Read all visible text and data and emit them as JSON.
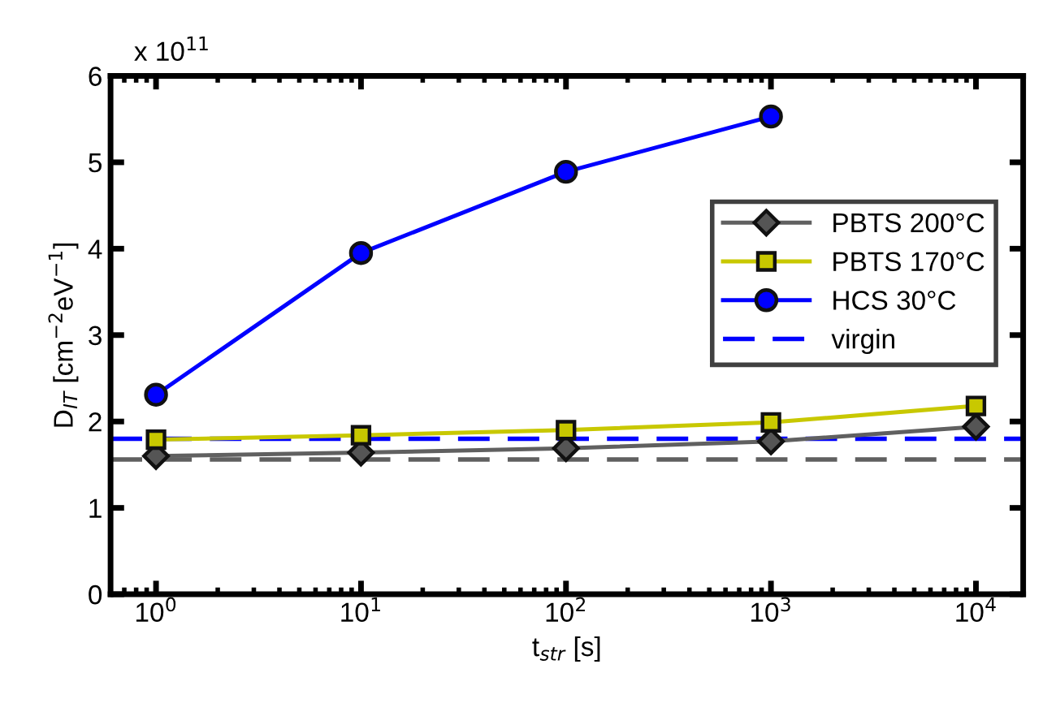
{
  "chart_data": {
    "type": "line",
    "xlabel": "t$_{str}$ [s]",
    "ylabel": "D$_{IT}$ [cm$^{−2}$eV$^{−1}$]",
    "annotations": [
      "x 10$^{11}$"
    ],
    "log": "x",
    "xlim": [
      0.6,
      17000
    ],
    "xticks": [
      {
        "value": 1,
        "label": "10$^{0}$"
      },
      {
        "value": 10,
        "label": "10$^{1}$"
      },
      {
        "value": 100,
        "label": "10$^{2}$"
      },
      {
        "value": 1000,
        "label": "10$^{3}$"
      },
      {
        "value": 10000,
        "label": "10$^{4}$"
      }
    ],
    "ylim": [
      0,
      6
    ],
    "yticks": [
      0,
      1,
      2,
      3,
      4,
      5,
      6
    ],
    "x": [
      1,
      10,
      100,
      1000,
      10000
    ],
    "series": [
      {
        "name": "PBTS 200°C",
        "color": "#606060",
        "marker": "diamond",
        "values": [
          1.6,
          1.64,
          1.69,
          1.77,
          1.94
        ]
      },
      {
        "name": "PBTS 170°C",
        "color": "#c8c800",
        "marker": "square",
        "values": [
          1.79,
          1.84,
          1.9,
          1.99,
          2.18
        ]
      },
      {
        "name": "HCS 30°C",
        "color": "#0000ff",
        "marker": "circle",
        "values": [
          2.31,
          3.95,
          4.89,
          5.53,
          null
        ]
      }
    ],
    "ref_lines": [
      {
        "axis": "y",
        "value": 1.8,
        "label": "virgin",
        "color": "#0000ff",
        "line_style": "dashed"
      },
      {
        "axis": "y",
        "value": 1.56,
        "label": null,
        "color": "#606060",
        "line_style": "dashed"
      }
    ],
    "legend": "center right",
    "grid": false
  }
}
